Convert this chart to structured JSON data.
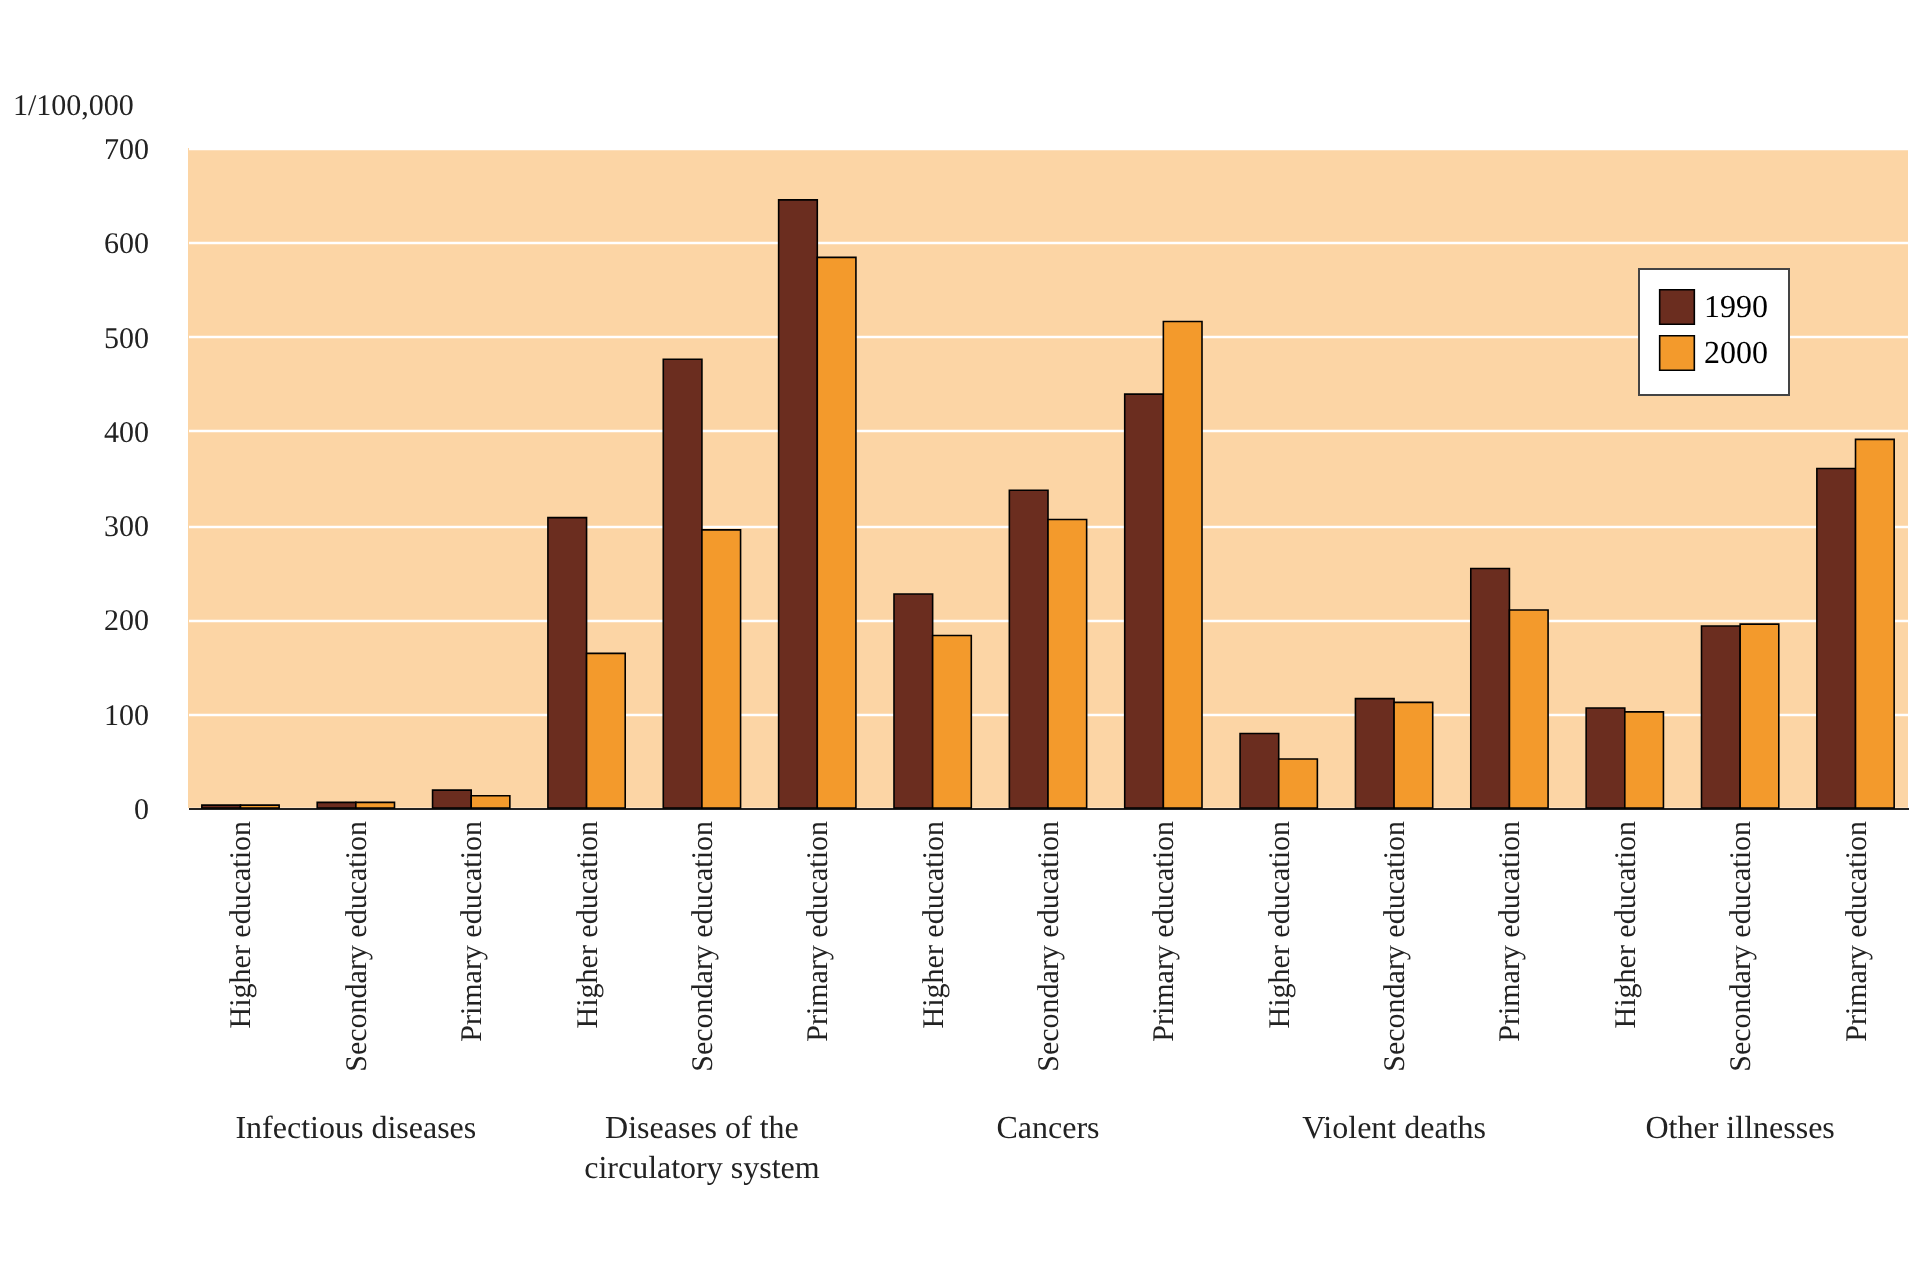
{
  "chart_data": {
    "type": "bar",
    "ylabel": "1/100,000",
    "categories": [
      "Higher education",
      "Secondary education",
      "Primary education",
      "Higher education",
      "Secondary education",
      "Primary education",
      "Higher education",
      "Secondary education",
      "Primary education",
      "Higher education",
      "Secondary education",
      "Primary education",
      "Higher education",
      "Secondary education",
      "Primary education"
    ],
    "annotations": [
      "Infectious diseases",
      "Diseases of the circulatory system",
      "Cancers",
      "Violent deaths",
      "Other illnesses"
    ],
    "series": [
      {
        "name": "1990",
        "color": "#6b2d1f",
        "values": [
          3,
          6,
          19,
          308,
          476,
          645,
          227,
          337,
          439,
          79,
          116,
          254,
          106,
          193,
          360
        ]
      },
      {
        "name": "2000",
        "color": "#f39a2c",
        "values": [
          3,
          6,
          13,
          164,
          295,
          584,
          183,
          306,
          516,
          52,
          112,
          210,
          102,
          195,
          391
        ]
      }
    ],
    "ylim": [
      0,
      700
    ],
    "yticks": [
      0,
      100,
      200,
      300,
      400,
      500,
      600,
      700
    ],
    "grid": "y",
    "legend": "top right"
  }
}
